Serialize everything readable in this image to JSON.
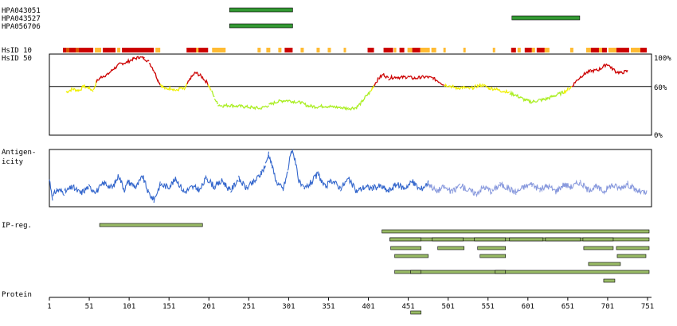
{
  "chart_data": {
    "type": "protein-feature-map",
    "antibodies": [
      {
        "name": "HPA043051",
        "start": 227,
        "end": 306
      },
      {
        "name": "HPA043527",
        "start": 581,
        "end": 666
      },
      {
        "name": "HPA056706",
        "start": 227,
        "end": 306
      }
    ],
    "hsid10_label": "HsID 10",
    "hsid10_segments": [
      {
        "start": 18,
        "end": 56,
        "level": "high"
      },
      {
        "start": 22,
        "end": 26,
        "level": "mid"
      },
      {
        "start": 34,
        "end": 38,
        "level": "mid"
      },
      {
        "start": 58,
        "end": 66,
        "level": "low"
      },
      {
        "start": 68,
        "end": 84,
        "level": "high"
      },
      {
        "start": 86,
        "end": 90,
        "level": "low"
      },
      {
        "start": 92,
        "end": 132,
        "level": "high"
      },
      {
        "start": 134,
        "end": 140,
        "level": "low"
      },
      {
        "start": 173,
        "end": 200,
        "level": "high"
      },
      {
        "start": 185,
        "end": 188,
        "level": "low"
      },
      {
        "start": 205,
        "end": 222,
        "level": "low"
      },
      {
        "start": 262,
        "end": 266,
        "level": "low"
      },
      {
        "start": 273,
        "end": 278,
        "level": "low"
      },
      {
        "start": 288,
        "end": 292,
        "level": "low"
      },
      {
        "start": 296,
        "end": 306,
        "level": "high"
      },
      {
        "start": 316,
        "end": 320,
        "level": "low"
      },
      {
        "start": 336,
        "end": 340,
        "level": "low"
      },
      {
        "start": 350,
        "end": 354,
        "level": "low"
      },
      {
        "start": 370,
        "end": 373,
        "level": "low"
      },
      {
        "start": 400,
        "end": 408,
        "level": "high"
      },
      {
        "start": 420,
        "end": 432,
        "level": "high"
      },
      {
        "start": 433,
        "end": 436,
        "level": "low"
      },
      {
        "start": 440,
        "end": 446,
        "level": "high"
      },
      {
        "start": 450,
        "end": 456,
        "level": "low"
      },
      {
        "start": 456,
        "end": 466,
        "level": "high"
      },
      {
        "start": 466,
        "end": 478,
        "level": "low"
      },
      {
        "start": 480,
        "end": 486,
        "level": "low"
      },
      {
        "start": 495,
        "end": 498,
        "level": "low"
      },
      {
        "start": 520,
        "end": 523,
        "level": "low"
      },
      {
        "start": 557,
        "end": 560,
        "level": "low"
      },
      {
        "start": 580,
        "end": 586,
        "level": "high"
      },
      {
        "start": 588,
        "end": 592,
        "level": "low"
      },
      {
        "start": 597,
        "end": 606,
        "level": "high"
      },
      {
        "start": 606,
        "end": 610,
        "level": "low"
      },
      {
        "start": 612,
        "end": 622,
        "level": "high"
      },
      {
        "start": 622,
        "end": 628,
        "level": "low"
      },
      {
        "start": 654,
        "end": 658,
        "level": "low"
      },
      {
        "start": 674,
        "end": 680,
        "level": "low"
      },
      {
        "start": 680,
        "end": 700,
        "level": "high"
      },
      {
        "start": 690,
        "end": 694,
        "level": "low"
      },
      {
        "start": 702,
        "end": 712,
        "level": "low"
      },
      {
        "start": 712,
        "end": 728,
        "level": "high"
      },
      {
        "start": 730,
        "end": 742,
        "level": "low"
      },
      {
        "start": 742,
        "end": 750,
        "level": "high"
      }
    ],
    "hsid50_label": "HsID 50",
    "hsid_axis_labels": [
      "100%",
      "60%",
      "0%"
    ],
    "hsid_profile": [
      {
        "x": 22,
        "y": 53
      },
      {
        "x": 30,
        "y": 57
      },
      {
        "x": 38,
        "y": 55
      },
      {
        "x": 44,
        "y": 60
      },
      {
        "x": 50,
        "y": 58
      },
      {
        "x": 56,
        "y": 55
      },
      {
        "x": 60,
        "y": 66
      },
      {
        "x": 66,
        "y": 72
      },
      {
        "x": 74,
        "y": 75
      },
      {
        "x": 82,
        "y": 82
      },
      {
        "x": 90,
        "y": 88
      },
      {
        "x": 98,
        "y": 90
      },
      {
        "x": 106,
        "y": 94
      },
      {
        "x": 114,
        "y": 96
      },
      {
        "x": 120,
        "y": 95
      },
      {
        "x": 126,
        "y": 90
      },
      {
        "x": 132,
        "y": 80
      },
      {
        "x": 137,
        "y": 68
      },
      {
        "x": 140,
        "y": 63
      },
      {
        "x": 146,
        "y": 57
      },
      {
        "x": 154,
        "y": 58
      },
      {
        "x": 160,
        "y": 55
      },
      {
        "x": 166,
        "y": 58
      },
      {
        "x": 170,
        "y": 56
      },
      {
        "x": 174,
        "y": 63
      },
      {
        "x": 178,
        "y": 70
      },
      {
        "x": 184,
        "y": 77
      },
      {
        "x": 190,
        "y": 74
      },
      {
        "x": 196,
        "y": 68
      },
      {
        "x": 200,
        "y": 63
      },
      {
        "x": 204,
        "y": 55
      },
      {
        "x": 208,
        "y": 46
      },
      {
        "x": 212,
        "y": 38
      },
      {
        "x": 218,
        "y": 36
      },
      {
        "x": 226,
        "y": 37
      },
      {
        "x": 236,
        "y": 36
      },
      {
        "x": 246,
        "y": 35
      },
      {
        "x": 256,
        "y": 34
      },
      {
        "x": 266,
        "y": 33
      },
      {
        "x": 276,
        "y": 37
      },
      {
        "x": 286,
        "y": 41
      },
      {
        "x": 296,
        "y": 43
      },
      {
        "x": 306,
        "y": 42
      },
      {
        "x": 316,
        "y": 40
      },
      {
        "x": 326,
        "y": 36
      },
      {
        "x": 336,
        "y": 35
      },
      {
        "x": 346,
        "y": 36
      },
      {
        "x": 356,
        "y": 35
      },
      {
        "x": 366,
        "y": 34
      },
      {
        "x": 376,
        "y": 33
      },
      {
        "x": 386,
        "y": 34
      },
      {
        "x": 392,
        "y": 40
      },
      {
        "x": 398,
        "y": 48
      },
      {
        "x": 404,
        "y": 54
      },
      {
        "x": 408,
        "y": 62
      },
      {
        "x": 414,
        "y": 70
      },
      {
        "x": 420,
        "y": 75
      },
      {
        "x": 426,
        "y": 70
      },
      {
        "x": 434,
        "y": 72
      },
      {
        "x": 442,
        "y": 71
      },
      {
        "x": 450,
        "y": 72
      },
      {
        "x": 458,
        "y": 70
      },
      {
        "x": 466,
        "y": 71
      },
      {
        "x": 474,
        "y": 72
      },
      {
        "x": 482,
        "y": 70
      },
      {
        "x": 490,
        "y": 66
      },
      {
        "x": 496,
        "y": 62
      },
      {
        "x": 502,
        "y": 61
      },
      {
        "x": 506,
        "y": 60
      },
      {
        "x": 512,
        "y": 58
      },
      {
        "x": 520,
        "y": 59
      },
      {
        "x": 528,
        "y": 57
      },
      {
        "x": 536,
        "y": 60
      },
      {
        "x": 544,
        "y": 62
      },
      {
        "x": 552,
        "y": 58
      },
      {
        "x": 560,
        "y": 57
      },
      {
        "x": 566,
        "y": 55
      },
      {
        "x": 572,
        "y": 54
      },
      {
        "x": 578,
        "y": 52
      },
      {
        "x": 584,
        "y": 50
      },
      {
        "x": 590,
        "y": 47
      },
      {
        "x": 598,
        "y": 43
      },
      {
        "x": 606,
        "y": 41
      },
      {
        "x": 614,
        "y": 43
      },
      {
        "x": 622,
        "y": 44
      },
      {
        "x": 630,
        "y": 47
      },
      {
        "x": 638,
        "y": 50
      },
      {
        "x": 646,
        "y": 53
      },
      {
        "x": 652,
        "y": 57
      },
      {
        "x": 656,
        "y": 60
      },
      {
        "x": 660,
        "y": 65
      },
      {
        "x": 666,
        "y": 71
      },
      {
        "x": 672,
        "y": 76
      },
      {
        "x": 680,
        "y": 79
      },
      {
        "x": 688,
        "y": 80
      },
      {
        "x": 694,
        "y": 83
      },
      {
        "x": 700,
        "y": 88
      },
      {
        "x": 706,
        "y": 83
      },
      {
        "x": 712,
        "y": 78
      },
      {
        "x": 718,
        "y": 77
      },
      {
        "x": 726,
        "y": 79
      }
    ],
    "antigenicity_label": [
      "Antigen-",
      "icity"
    ],
    "antigenicity_profile": [
      {
        "x": 1,
        "y": 0.45
      },
      {
        "x": 5,
        "y": 0.1
      },
      {
        "x": 10,
        "y": 0.25
      },
      {
        "x": 20,
        "y": 0.2
      },
      {
        "x": 30,
        "y": 0.3
      },
      {
        "x": 40,
        "y": 0.18
      },
      {
        "x": 50,
        "y": 0.3
      },
      {
        "x": 60,
        "y": 0.22
      },
      {
        "x": 70,
        "y": 0.38
      },
      {
        "x": 80,
        "y": 0.28
      },
      {
        "x": 88,
        "y": 0.52
      },
      {
        "x": 95,
        "y": 0.25
      },
      {
        "x": 100,
        "y": 0.4
      },
      {
        "x": 110,
        "y": 0.3
      },
      {
        "x": 118,
        "y": 0.5
      },
      {
        "x": 125,
        "y": 0.2
      },
      {
        "x": 132,
        "y": 0.05
      },
      {
        "x": 140,
        "y": 0.35
      },
      {
        "x": 150,
        "y": 0.3
      },
      {
        "x": 160,
        "y": 0.45
      },
      {
        "x": 170,
        "y": 0.2
      },
      {
        "x": 180,
        "y": 0.3
      },
      {
        "x": 190,
        "y": 0.25
      },
      {
        "x": 198,
        "y": 0.48
      },
      {
        "x": 208,
        "y": 0.3
      },
      {
        "x": 218,
        "y": 0.42
      },
      {
        "x": 228,
        "y": 0.22
      },
      {
        "x": 238,
        "y": 0.46
      },
      {
        "x": 248,
        "y": 0.28
      },
      {
        "x": 258,
        "y": 0.4
      },
      {
        "x": 266,
        "y": 0.55
      },
      {
        "x": 272,
        "y": 0.72
      },
      {
        "x": 276,
        "y": 0.95
      },
      {
        "x": 280,
        "y": 0.7
      },
      {
        "x": 286,
        "y": 0.4
      },
      {
        "x": 294,
        "y": 0.25
      },
      {
        "x": 300,
        "y": 0.6
      },
      {
        "x": 304,
        "y": 1.0
      },
      {
        "x": 309,
        "y": 0.85
      },
      {
        "x": 314,
        "y": 0.4
      },
      {
        "x": 320,
        "y": 0.25
      },
      {
        "x": 330,
        "y": 0.4
      },
      {
        "x": 338,
        "y": 0.55
      },
      {
        "x": 346,
        "y": 0.3
      },
      {
        "x": 356,
        "y": 0.42
      },
      {
        "x": 366,
        "y": 0.28
      },
      {
        "x": 376,
        "y": 0.45
      },
      {
        "x": 386,
        "y": 0.22
      },
      {
        "x": 396,
        "y": 0.3
      },
      {
        "x": 406,
        "y": 0.28
      },
      {
        "x": 416,
        "y": 0.32
      },
      {
        "x": 426,
        "y": 0.22
      },
      {
        "x": 436,
        "y": 0.35
      },
      {
        "x": 446,
        "y": 0.28
      },
      {
        "x": 456,
        "y": 0.4
      },
      {
        "x": 466,
        "y": 0.25
      },
      {
        "x": 476,
        "y": 0.38
      },
      {
        "x": 486,
        "y": 0.22
      },
      {
        "x": 496,
        "y": 0.3
      },
      {
        "x": 506,
        "y": 0.2
      },
      {
        "x": 516,
        "y": 0.34
      },
      {
        "x": 526,
        "y": 0.24
      },
      {
        "x": 536,
        "y": 0.18
      },
      {
        "x": 546,
        "y": 0.3
      },
      {
        "x": 556,
        "y": 0.22
      },
      {
        "x": 566,
        "y": 0.35
      },
      {
        "x": 576,
        "y": 0.28
      },
      {
        "x": 586,
        "y": 0.2
      },
      {
        "x": 596,
        "y": 0.3
      },
      {
        "x": 606,
        "y": 0.36
      },
      {
        "x": 616,
        "y": 0.25
      },
      {
        "x": 626,
        "y": 0.32
      },
      {
        "x": 636,
        "y": 0.22
      },
      {
        "x": 646,
        "y": 0.35
      },
      {
        "x": 656,
        "y": 0.3
      },
      {
        "x": 666,
        "y": 0.4
      },
      {
        "x": 676,
        "y": 0.25
      },
      {
        "x": 686,
        "y": 0.3
      },
      {
        "x": 696,
        "y": 0.22
      },
      {
        "x": 706,
        "y": 0.34
      },
      {
        "x": 716,
        "y": 0.28
      },
      {
        "x": 726,
        "y": 0.36
      },
      {
        "x": 736,
        "y": 0.24
      },
      {
        "x": 744,
        "y": 0.2
      },
      {
        "x": 750,
        "y": 0.18
      }
    ],
    "ipreg_label": "IP-reg.",
    "ip_regions": [
      [
        64,
        193
      ],
      [
        418,
        753
      ],
      [
        428,
        753
      ],
      [
        428,
        467
      ],
      [
        481,
        520
      ],
      [
        534,
        573
      ],
      [
        578,
        620
      ],
      [
        623,
        667
      ],
      [
        670,
        708
      ],
      [
        712,
        753
      ],
      [
        429,
        467
      ],
      [
        488,
        521
      ],
      [
        538,
        573
      ],
      [
        671,
        708
      ],
      [
        713,
        749
      ],
      [
        434,
        476
      ],
      [
        541,
        573
      ],
      [
        677,
        717
      ],
      [
        434,
        753
      ],
      [
        454,
        467
      ],
      [
        560,
        573
      ],
      [
        696,
        710
      ],
      [
        454,
        467
      ]
    ],
    "protein_label": "Protein",
    "x_ticks": [
      1,
      51,
      101,
      151,
      201,
      251,
      301,
      351,
      401,
      451,
      501,
      551,
      601,
      651,
      701,
      751
    ],
    "xlim": [
      1,
      753
    ],
    "colors": {
      "antibody": "#339933",
      "hsid_high": "#cc0000",
      "hsid_mid": "#dd5500",
      "hsid_low": "#ffbb33",
      "hsid_yellow": "#f0f000",
      "hsid_green": "#aaee22",
      "antigenicity": "#3366cc",
      "antigenicity_light": "#8899dd",
      "ipreg": "#99bb66"
    }
  }
}
